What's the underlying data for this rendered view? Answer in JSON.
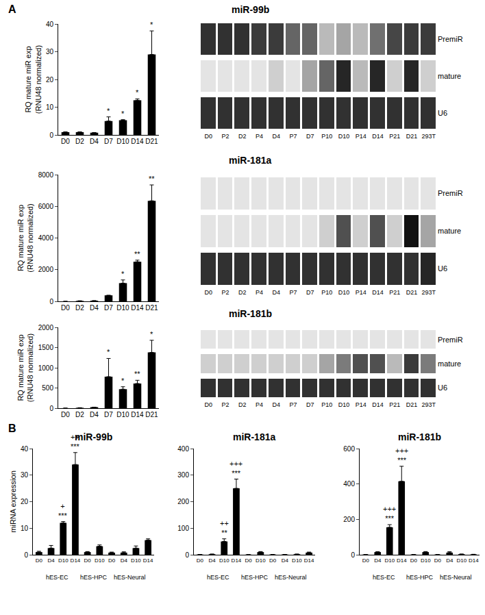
{
  "chart_data": [
    {
      "type": "bar",
      "title": "miR-99b",
      "annotations": [
        "A"
      ],
      "y_label": [
        "RQ mature miR exp",
        "(RNU48 normalized)"
      ],
      "categories": [
        "D0",
        "D2",
        "D4",
        "D7",
        "D10",
        "D14",
        "D21"
      ],
      "values": [
        1,
        1,
        0.8,
        5,
        5.3,
        12.5,
        29
      ],
      "errors": [
        0.1,
        0.1,
        0.05,
        1.5,
        0.2,
        0.5,
        8.5
      ],
      "significance": [
        null,
        null,
        null,
        "*",
        "*",
        "*",
        "*"
      ],
      "color": "#000000",
      "ylim": [
        0,
        40
      ],
      "yticks": [
        0,
        10,
        20,
        30,
        40
      ],
      "grid": false
    },
    {
      "type": "heatmap",
      "categories": [
        "D0",
        "P2",
        "D2",
        "P4",
        "D4",
        "P7",
        "D7",
        "P10",
        "D10",
        "P14",
        "D14",
        "P21",
        "D21",
        "293T"
      ],
      "rows": [
        "PremiR",
        "mature",
        "U6"
      ],
      "cells": [
        [
          0.85,
          0.85,
          0.85,
          0.8,
          0.8,
          0.6,
          0.6,
          0.2,
          0.3,
          0.2,
          0.55,
          0.75,
          0.8,
          0.8
        ],
        [
          0,
          0,
          0,
          0,
          0.1,
          0,
          0.3,
          0.6,
          0.9,
          0.2,
          0.9,
          0.1,
          0.9,
          0.1
        ],
        [
          0.85,
          0.85,
          0.85,
          0.85,
          0.85,
          0.85,
          0.85,
          0.85,
          0.85,
          0.85,
          0.85,
          0.85,
          0.85,
          0.85
        ]
      ],
      "zlim": [
        0,
        1
      ]
    },
    {
      "type": "bar",
      "title": "miR-181a",
      "y_label": [
        "RQ mature miR exp",
        "(RNU48 normalized)"
      ],
      "categories": [
        "D0",
        "D2",
        "D4",
        "D7",
        "D10",
        "D14",
        "D21"
      ],
      "values": [
        1,
        30,
        40,
        380,
        1150,
        2500,
        6350
      ],
      "errors": [
        0,
        0,
        0,
        0,
        200,
        100,
        1000
      ],
      "significance": [
        null,
        null,
        null,
        null,
        "*",
        "**",
        "**"
      ],
      "color": "#000000",
      "ylim": [
        0,
        8000
      ],
      "yticks": [
        0,
        2000,
        4000,
        6000,
        8000
      ],
      "grid": false
    },
    {
      "type": "heatmap",
      "categories": [
        "D0",
        "P2",
        "D2",
        "P4",
        "D4",
        "P7",
        "D7",
        "P10",
        "D10",
        "P14",
        "D14",
        "P21",
        "D21",
        "293T"
      ],
      "rows": [
        "PremiR",
        "mature",
        "U6"
      ],
      "cells": [
        [
          0,
          0,
          0,
          0,
          0,
          0,
          0,
          0,
          0,
          0,
          0,
          0,
          0,
          0
        ],
        [
          0,
          0,
          0,
          0,
          0,
          0,
          0,
          0.1,
          0.7,
          0.1,
          0.7,
          0.1,
          1,
          0.3
        ],
        [
          0.85,
          0.85,
          0.85,
          0.85,
          0.85,
          0.85,
          0.85,
          0.85,
          0.85,
          0.85,
          0.85,
          0.85,
          0.85,
          0.9
        ]
      ],
      "zlim": [
        0,
        1
      ]
    },
    {
      "type": "bar",
      "title": "miR-181b",
      "y_label": [
        "RQ mature miR exp",
        "(RNU48 normalized)"
      ],
      "categories": [
        "D0",
        "D2",
        "D4",
        "D7",
        "D10",
        "D14",
        "D21"
      ],
      "values": [
        1,
        10,
        25,
        780,
        470,
        610,
        1380
      ],
      "errors": [
        0,
        0,
        0,
        450,
        60,
        80,
        300
      ],
      "significance": [
        null,
        null,
        null,
        "*",
        "*",
        "**",
        "*"
      ],
      "color": "#000000",
      "ylim": [
        0,
        2000
      ],
      "yticks": [
        0,
        500,
        1000,
        1500,
        2000
      ],
      "grid": false
    },
    {
      "type": "heatmap",
      "categories": [
        "D0",
        "P2",
        "D2",
        "P4",
        "D4",
        "P7",
        "D7",
        "P10",
        "D10",
        "P14",
        "D14",
        "P21",
        "D21",
        "293T"
      ],
      "rows": [
        "PremiR",
        "mature",
        "U6"
      ],
      "cells": [
        [
          0,
          0,
          0,
          0,
          0,
          0,
          0,
          0,
          0,
          0,
          0,
          0,
          0,
          0
        ],
        [
          0.1,
          0.1,
          0.1,
          0.1,
          0.1,
          0.1,
          0.1,
          0.3,
          0.5,
          0.7,
          0.7,
          0.2,
          0.8,
          0.5
        ],
        [
          0.85,
          0.85,
          0.85,
          0.85,
          0.85,
          0.85,
          0.85,
          0.85,
          0.85,
          0.85,
          0.85,
          0.85,
          0.85,
          0.85
        ]
      ],
      "zlim": [
        0,
        1
      ]
    },
    {
      "type": "bar",
      "title": "miR-99b",
      "annotations": [
        "B"
      ],
      "y_label": [
        "miRNA expression"
      ],
      "categories": [
        "D0",
        "D4",
        "D10",
        "D14",
        "D0",
        "D10",
        "D0",
        "D4",
        "D10",
        "D14"
      ],
      "group_labels": [
        "hES-EC",
        "hES-EC",
        "hES-EC",
        "hES-EC",
        "hES-HPC",
        "hES-HPC",
        "hES-Neural",
        "hES-Neural",
        "hES-Neural",
        "hES-Neural"
      ],
      "values": [
        1,
        2.5,
        12,
        34,
        1,
        3.2,
        0.8,
        0.8,
        2.5,
        5.5
      ],
      "errors": [
        0.3,
        1,
        0.5,
        4.5,
        0.2,
        0.5,
        0.2,
        0.3,
        0.8,
        0.5
      ],
      "significance": [
        null,
        null,
        [
          "+",
          "***"
        ],
        [
          "++",
          "***"
        ],
        null,
        null,
        null,
        null,
        null,
        null
      ],
      "color": "#000000",
      "ylim": [
        0,
        40
      ],
      "yticks": [
        0,
        10,
        20,
        30,
        40
      ],
      "grid": false
    },
    {
      "type": "bar",
      "title": "miR-181a",
      "categories": [
        "D0",
        "D4",
        "D10",
        "D14",
        "D0",
        "D10",
        "D0",
        "D4",
        "D10",
        "D14"
      ],
      "group_labels": [
        "hES-EC",
        "hES-EC",
        "hES-EC",
        "hES-EC",
        "hES-HPC",
        "hES-HPC",
        "hES-Neural",
        "hES-Neural",
        "hES-Neural",
        "hES-Neural"
      ],
      "values": [
        1,
        2,
        50,
        250,
        0.5,
        10,
        1,
        1,
        2,
        8
      ],
      "errors": [
        0,
        0.5,
        10,
        35,
        0,
        2,
        0,
        0,
        0.5,
        2
      ],
      "significance": [
        null,
        null,
        [
          "++",
          "**"
        ],
        [
          "+++",
          "***"
        ],
        null,
        null,
        null,
        null,
        null,
        null
      ],
      "color": "#000000",
      "ylim": [
        0,
        400
      ],
      "yticks": [
        0,
        100,
        200,
        300,
        400
      ],
      "grid": false
    },
    {
      "type": "bar",
      "title": "miR-181b",
      "categories": [
        "D0",
        "D4",
        "D10",
        "D14",
        "D0",
        "D10",
        "D0",
        "D4",
        "D10",
        "D14"
      ],
      "group_labels": [
        "hES-EC",
        "hES-EC",
        "hES-EC",
        "hES-EC",
        "hES-HPC",
        "hES-HPC",
        "hES-Neural",
        "hES-Neural",
        "hES-Neural",
        "hES-Neural"
      ],
      "values": [
        1,
        15,
        155,
        415,
        1,
        15,
        1,
        12,
        3,
        2
      ],
      "errors": [
        0,
        2,
        15,
        85,
        0,
        3,
        0,
        5,
        1,
        0.5
      ],
      "significance": [
        null,
        null,
        [
          "+++",
          "***"
        ],
        [
          "+++",
          "***"
        ],
        null,
        null,
        null,
        null,
        null,
        null
      ],
      "color": "#000000",
      "ylim": [
        0,
        600
      ],
      "yticks": [
        0,
        200,
        400,
        600
      ],
      "grid": false
    }
  ]
}
